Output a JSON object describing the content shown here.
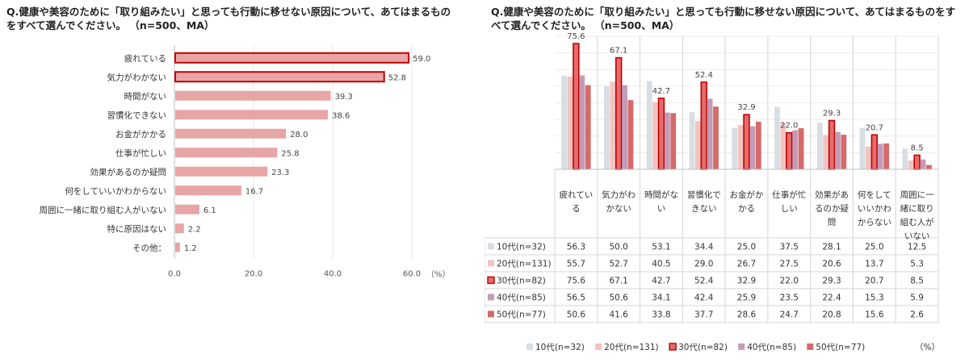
{
  "left_title": "Q.健康や美容のために「取り組みたい」と思っても行動に移せない原因について、あてはまるものをすべて選んでください。 （n=500、MA）",
  "right_title": "Q.健康や美容のために「取り組みたい」と思っても行動に移せない原因について、あてはまるものをすべて選んでください。 （n=500、MA）",
  "chart_data": [
    {
      "type": "bar",
      "orientation": "horizontal",
      "categories": [
        "疲れている",
        "気力がわかない",
        "時間がない",
        "習慣化できない",
        "お金がかかる",
        "仕事が忙しい",
        "効果があるのか疑問",
        "何をしていいかわからない",
        "周囲に一緒に取り組む人がいない",
        "特に原因はない",
        "その他："
      ],
      "values": [
        59.0,
        52.8,
        39.3,
        38.6,
        28.0,
        25.8,
        23.3,
        16.7,
        6.1,
        2.2,
        1.2
      ],
      "highlighted": [
        true,
        true,
        false,
        false,
        false,
        false,
        false,
        false,
        false,
        false,
        false
      ],
      "xlim": [
        0,
        60
      ],
      "xticks": [
        "0.0",
        "20.0",
        "40.0",
        "60.0"
      ],
      "unit": "（%）",
      "colors": {
        "bar": "#e8a5a5",
        "highlight_fill": "#e8a5a5",
        "highlight_border": "#c00000"
      }
    },
    {
      "type": "bar",
      "categories_lines": [
        [
          "疲れてい",
          "る"
        ],
        [
          "気力がわ",
          "かない"
        ],
        [
          "時間がな",
          "い"
        ],
        [
          "習慣化で",
          "きない"
        ],
        [
          "お金がか",
          "かる"
        ],
        [
          "仕事が忙",
          "しい"
        ],
        [
          "効果があ",
          "るのか疑",
          "問"
        ],
        [
          "何をして",
          "いいかわ",
          "からない"
        ],
        [
          "周囲に一",
          "緒に取り",
          "組む人が",
          "いない"
        ]
      ],
      "ylim": [
        0,
        80
      ],
      "series": [
        {
          "name": "10代(n=32)",
          "color": "#d9dde4",
          "values": [
            56.3,
            50.0,
            53.1,
            34.4,
            25.0,
            37.5,
            28.1,
            25.0,
            12.5
          ]
        },
        {
          "name": "20代(n=131)",
          "color": "#f2c4c0",
          "values": [
            55.7,
            52.7,
            40.5,
            29.0,
            26.7,
            27.5,
            20.6,
            13.7,
            5.3
          ]
        },
        {
          "name": "30代(n=82)",
          "color": "#e46c6c",
          "border": "#c00000",
          "highlight": true,
          "values": [
            75.6,
            67.1,
            42.7,
            52.4,
            32.9,
            22.0,
            29.3,
            20.7,
            8.5
          ]
        },
        {
          "name": "40代(n=85)",
          "color": "#c49bb7",
          "values": [
            56.5,
            50.6,
            34.1,
            42.4,
            25.9,
            23.5,
            22.4,
            15.3,
            5.9
          ]
        },
        {
          "name": "50代(n=77)",
          "color": "#d46a6a",
          "values": [
            50.6,
            41.6,
            33.8,
            37.7,
            28.6,
            24.7,
            20.8,
            15.6,
            2.6
          ]
        }
      ],
      "data_labels": [
        "75.6",
        "67.1",
        "42.7",
        "52.4",
        "32.9",
        "22.0",
        "29.3",
        "20.7",
        "8.5"
      ],
      "table": [
        [
          "56.3",
          "50.0",
          "53.1",
          "34.4",
          "25.0",
          "37.5",
          "28.1",
          "25.0",
          "12.5"
        ],
        [
          "55.7",
          "52.7",
          "40.5",
          "29.0",
          "26.7",
          "27.5",
          "20.6",
          "13.7",
          "5.3"
        ],
        [
          "75.6",
          "67.1",
          "42.7",
          "52.4",
          "32.9",
          "22.0",
          "29.3",
          "20.7",
          "8.5"
        ],
        [
          "56.5",
          "50.6",
          "34.1",
          "42.4",
          "25.9",
          "23.5",
          "22.4",
          "15.3",
          "5.9"
        ],
        [
          "50.6",
          "41.6",
          "33.8",
          "37.7",
          "28.6",
          "24.7",
          "20.8",
          "15.6",
          "2.6"
        ]
      ],
      "legend": [
        "10代(n=32)",
        "20代(n=131)",
        "30代(n=82)",
        "40代(n=85)",
        "50代(n=77)"
      ],
      "legend_placement": "bottom",
      "unit": "（%）",
      "grid": true
    }
  ]
}
